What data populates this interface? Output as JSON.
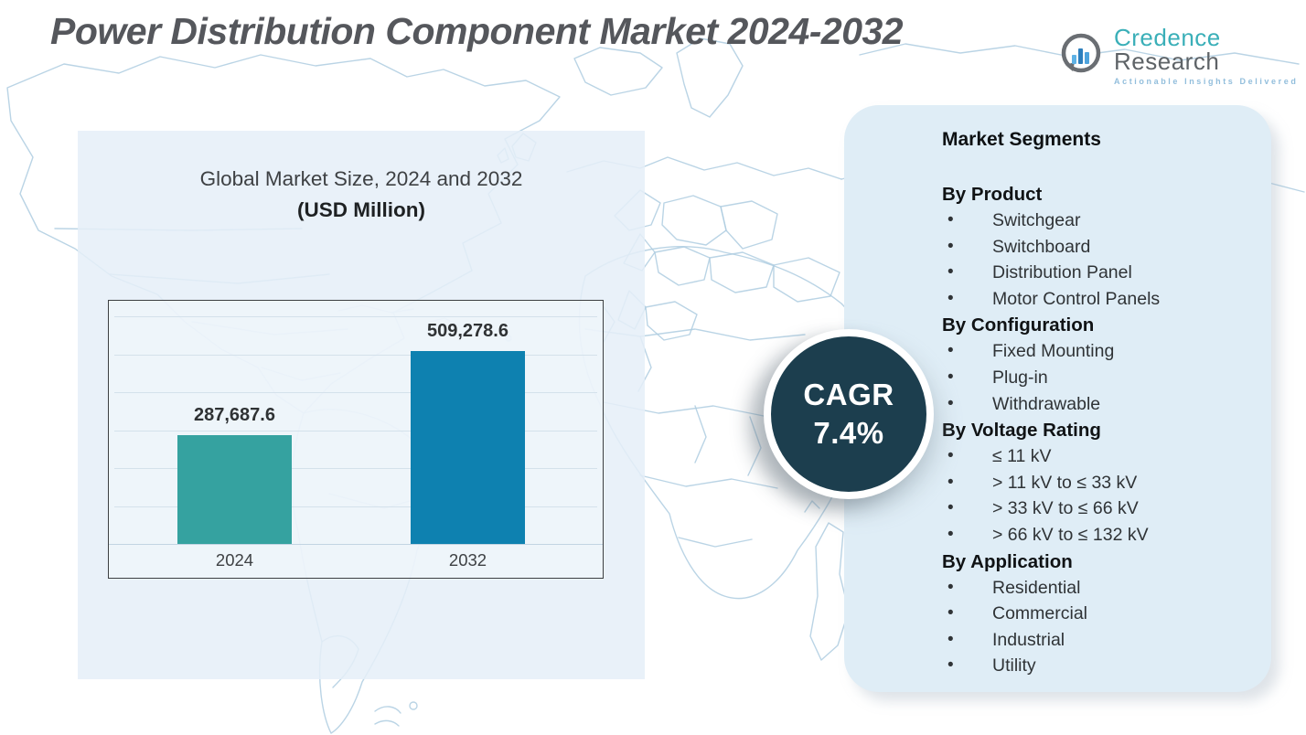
{
  "title": "Power Distribution Component Market 2024-2032",
  "logo": {
    "brand_primary": "Credence",
    "brand_secondary": "Research",
    "tagline": "Actionable Insights Delivered",
    "icon": "bar-chart-bubble-icon",
    "brand_primary_color": "#3AAFB8",
    "brand_secondary_color": "#5E6367"
  },
  "chart_data": {
    "type": "bar",
    "title": "Global Market Size, 2024 and 2032",
    "subtitle": "(USD Million)",
    "categories": [
      "2024",
      "2032"
    ],
    "values": [
      287687.6,
      509278.6
    ],
    "value_labels": [
      "287,687.6",
      "509,278.6"
    ],
    "bar_colors": [
      "#35A2A0",
      "#0E81B0"
    ],
    "ylim": [
      0,
      600000
    ],
    "grid": true,
    "gridline_count": 6,
    "legend": "none"
  },
  "cagr_badge": {
    "label": "CAGR",
    "value": "7.4%",
    "bg_color": "#1C3E4E"
  },
  "segments_panel": {
    "title": "Market Segments",
    "groups": [
      {
        "heading": "By Product",
        "items": [
          "Switchgear",
          "Switchboard",
          "Distribution Panel",
          "Motor Control Panels"
        ]
      },
      {
        "heading": "By Configuration",
        "items": [
          "Fixed Mounting",
          "Plug-in",
          "Withdrawable"
        ]
      },
      {
        "heading": "By Voltage Rating",
        "items": [
          "≤ 11 kV",
          "> 11 kV to ≤ 33 kV",
          "> 33 kV to ≤ 66 kV",
          "> 66 kV to ≤ 132 kV"
        ]
      },
      {
        "heading": "By Application",
        "items": [
          "Residential",
          "Commercial",
          "Industrial",
          "Utility"
        ]
      }
    ]
  },
  "colors": {
    "bar_2024": "#35A2A0",
    "bar_2032": "#0E81B0",
    "badge_bg": "#1C3E4E",
    "left_panel_bg": "#E7F0F8",
    "right_panel_bg": "#DFEDF6",
    "map_line": "#AECDE0",
    "title_text": "#55575C"
  }
}
